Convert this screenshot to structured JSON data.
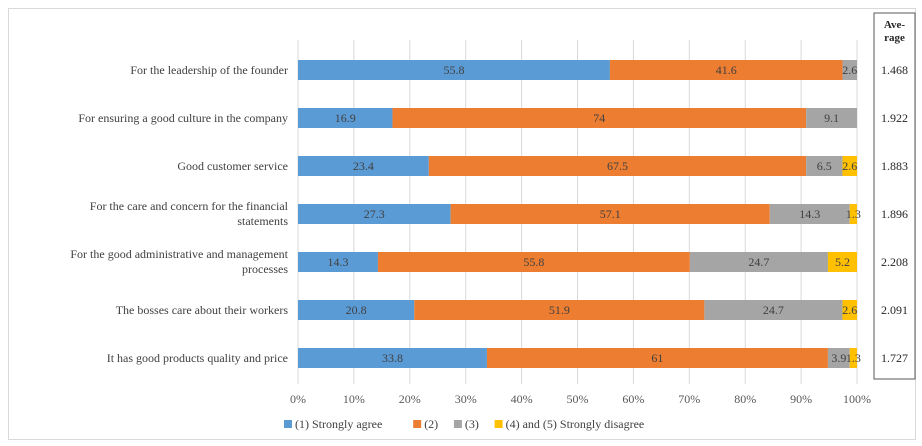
{
  "chart_data": {
    "type": "bar",
    "orientation": "horizontal",
    "stacked": true,
    "categories": [
      [
        "For the leadership of the founder"
      ],
      [
        "For ensuring a good culture in the company"
      ],
      [
        "Good customer service"
      ],
      [
        "For the care and concern for the financial",
        "statements"
      ],
      [
        "For the good administrative and management",
        "processes"
      ],
      [
        "The bosses care about their workers"
      ],
      [
        "It has good products quality and price"
      ]
    ],
    "series": [
      {
        "name": "(1) Strongly agree",
        "color": "#5b9bd5",
        "values": [
          55.8,
          16.9,
          23.4,
          27.3,
          14.3,
          20.8,
          33.8
        ]
      },
      {
        "name": "(2)",
        "color": "#ed7d31",
        "values": [
          41.6,
          74,
          67.5,
          57.1,
          55.8,
          51.9,
          61
        ]
      },
      {
        "name": "(3)",
        "color": "#a5a5a5",
        "values": [
          2.6,
          9.1,
          6.5,
          14.3,
          24.7,
          24.7,
          3.9
        ]
      },
      {
        "name": "(4) and (5) Strongly disagree",
        "color": "#ffc000",
        "values": [
          0,
          0,
          2.6,
          1.3,
          5.2,
          2.6,
          1.3
        ]
      }
    ],
    "xlim": [
      0,
      100
    ],
    "xticks": [
      "0%",
      "10%",
      "20%",
      "30%",
      "40%",
      "50%",
      "60%",
      "70%",
      "80%",
      "90%",
      "100%"
    ],
    "grid": true,
    "legend_position": "bottom",
    "average": {
      "header": [
        "Ave-",
        "rage"
      ],
      "values": [
        "1.468",
        "1.922",
        "1.883",
        "1.896",
        "2.208",
        "2.091",
        "1.727"
      ]
    }
  }
}
